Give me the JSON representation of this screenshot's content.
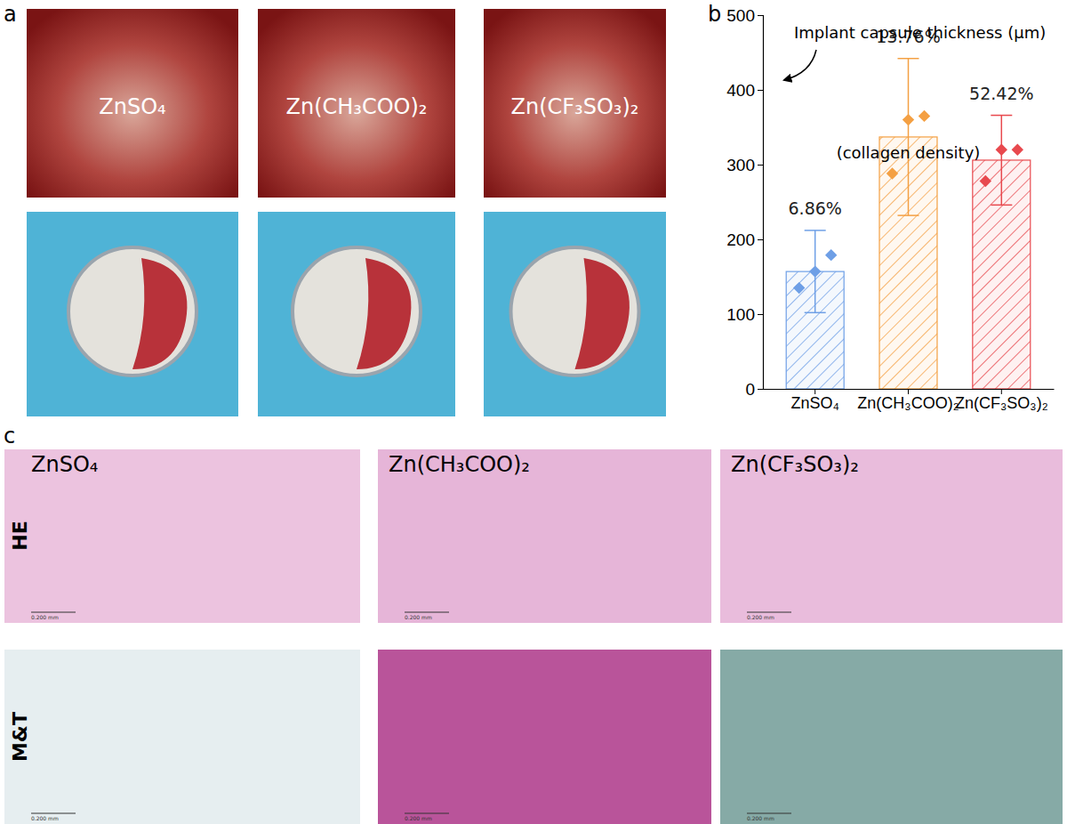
{
  "figure": {
    "panel_labels": [
      "a",
      "b",
      "c"
    ],
    "photo_labels": [
      "ZnSO₄",
      "Zn(CH₃COO)₂",
      "Zn(CF₃SO₃)₂"
    ],
    "histology_labels": [
      "ZnSO₄",
      "Zn(CH₃COO)₂",
      "Zn(CF₃SO₃)₂"
    ],
    "stain_labels": [
      "HE",
      "M&T"
    ],
    "scale_bar_label": "0.200 mm"
  },
  "chart_data": {
    "type": "bar",
    "categories": [
      "ZnSO₄",
      "Zn(CH₃COO)₂",
      "Zn(CF₃SO₃)₂"
    ],
    "values": [
      157,
      337,
      306
    ],
    "errors": [
      55,
      105,
      60
    ],
    "points": [
      [
        135,
        157,
        179
      ],
      [
        288,
        360,
        365
      ],
      [
        278,
        320,
        320
      ]
    ],
    "colors": [
      "#6e9fe6",
      "#f4a043",
      "#e8494e"
    ],
    "ylim": [
      0,
      500
    ],
    "yticks": [
      0,
      100,
      200,
      300,
      400,
      500
    ],
    "annotations": [
      "Implant capsule thickness (µm)",
      "(collagen density)"
    ],
    "collagen_density": {
      "values": [
        6.86,
        13.76,
        52.42
      ],
      "value_labels": [
        "6.86%",
        "13.76%",
        "52.42%"
      ]
    }
  }
}
